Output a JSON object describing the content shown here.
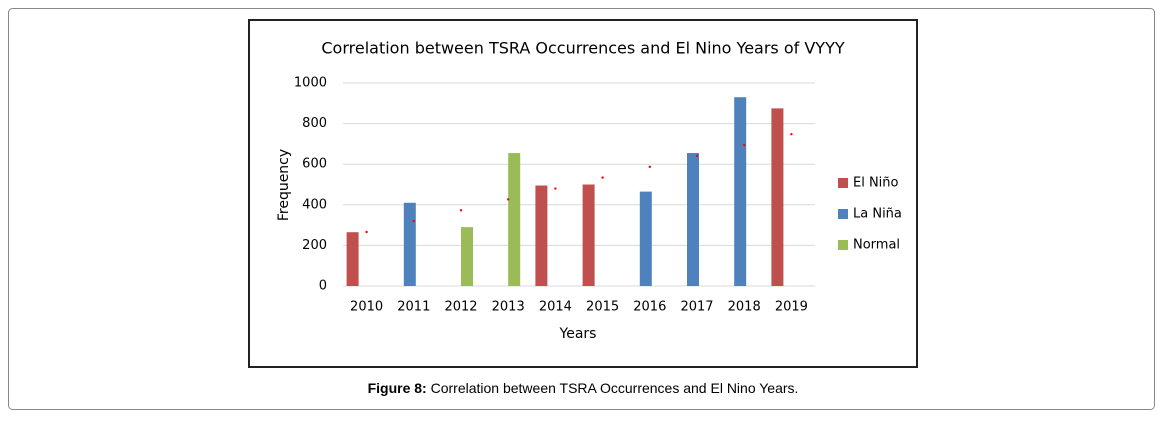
{
  "chart_data": {
    "type": "bar",
    "title": "Correlation between TSRA Occurrences and El Nino Years of VYYY",
    "x_label": "Years",
    "y_label": "Frequency",
    "categories": [
      "2010",
      "2011",
      "2012",
      "2013",
      "2014",
      "2015",
      "2016",
      "2017",
      "2018",
      "2019"
    ],
    "series": [
      {
        "name": "El Niño",
        "color": "#c0504d",
        "values": [
          265,
          null,
          null,
          null,
          495,
          500,
          null,
          null,
          null,
          875
        ]
      },
      {
        "name": "La Niña",
        "color": "#4f81bd",
        "values": [
          null,
          410,
          null,
          null,
          null,
          null,
          465,
          655,
          930,
          null
        ]
      },
      {
        "name": "Normal",
        "color": "#9bbb59",
        "values": [
          null,
          null,
          290,
          655,
          null,
          null,
          null,
          null,
          null,
          null
        ]
      }
    ],
    "trendline": {
      "color": "#ff0000",
      "values": [
        266,
        320,
        373,
        427,
        480,
        534,
        587,
        641,
        694,
        748
      ]
    },
    "ylim": [
      0,
      1000
    ],
    "yticks": [
      0,
      200,
      400,
      600,
      800,
      1000
    ],
    "grid": true,
    "legend": "right"
  },
  "caption": {
    "label": "Figure 8:",
    "text": "Correlation between TSRA Occurrences and El Nino Years."
  }
}
